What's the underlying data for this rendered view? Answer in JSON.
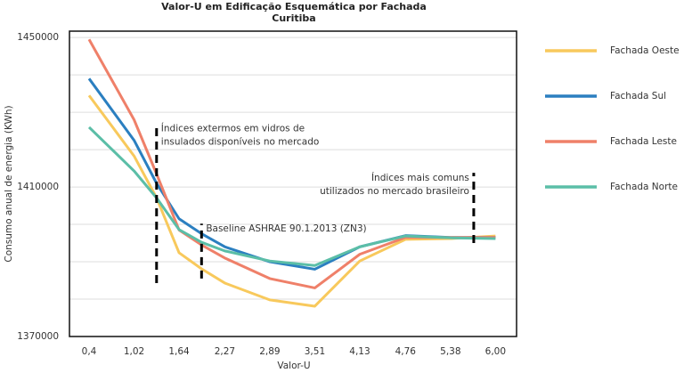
{
  "chart_data": {
    "type": "line",
    "title": [
      "Valor-U  em Edificação Esquemática por Fachada",
      "Curitiba"
    ],
    "x_label": "Valor-U",
    "y_label": "Consumo anual de energia (KWh)",
    "x": [
      0.4,
      1.02,
      1.33,
      1.64,
      1.95,
      2.27,
      2.89,
      3.51,
      4.13,
      4.76,
      5.38,
      6.0
    ],
    "xlim": [
      0.13,
      6.29
    ],
    "xticks": [
      {
        "value": 0.4,
        "label": "0,4"
      },
      {
        "value": 1.02,
        "label": "1,02"
      },
      {
        "value": 1.64,
        "label": "1,64"
      },
      {
        "value": 2.27,
        "label": "2,27"
      },
      {
        "value": 2.89,
        "label": "2,89"
      },
      {
        "value": 3.51,
        "label": "3,51"
      },
      {
        "value": 4.13,
        "label": "4,13"
      },
      {
        "value": 4.76,
        "label": "4,76"
      },
      {
        "value": 5.38,
        "label": "5,38"
      },
      {
        "value": 6.0,
        "label": "6,00"
      }
    ],
    "ylim": [
      1370000,
      1451700
    ],
    "yticks": [
      1370000,
      1410000,
      1450000
    ],
    "minor_yticks": [
      1380000,
      1390000,
      1400000,
      1420000,
      1430000,
      1440000
    ],
    "grid": true,
    "legend": "right",
    "series": [
      {
        "name": "Fachada Oeste",
        "color": "#f8c95c",
        "values": [
          1434500,
          1418300,
          1407100,
          1392400,
          1388100,
          1384300,
          1379800,
          1378100,
          1390200,
          1396000,
          1396200,
          1396900
        ]
      },
      {
        "name": "Fachada Sul",
        "color": "#2b7fc0",
        "values": [
          1439000,
          1422500,
          1411000,
          1401500,
          1397500,
          1394000,
          1390000,
          1388000,
          1394000,
          1397000,
          1396500,
          1396500
        ]
      },
      {
        "name": "Fachada Leste",
        "color": "#ef8069",
        "values": [
          1449500,
          1428000,
          1413500,
          1398500,
          1394500,
          1391000,
          1385500,
          1383000,
          1392000,
          1396500,
          1396500,
          1396500
        ]
      },
      {
        "name": "Fachada Norte",
        "color": "#5bbea7",
        "values": [
          1426000,
          1414300,
          1407100,
          1398600,
          1395200,
          1392900,
          1390200,
          1389000,
          1394000,
          1396900,
          1396400,
          1396200
        ]
      }
    ],
    "annotations": [
      {
        "lines": [
          "Índices extermos em vidros de",
          "insulados disponíveis no mercado"
        ],
        "x": 1.33,
        "y_range": [
          1384300,
          1427000
        ],
        "align": "start"
      },
      {
        "lines": [
          "Baseline ASHRAE 90.1.2013 (ZN3)"
        ],
        "x": 1.95,
        "y_range": [
          1385500,
          1400200
        ],
        "align": "start"
      },
      {
        "lines": [
          "Índices mais comuns",
          "utilizados no mercado brasileiro"
        ],
        "x": 5.7,
        "y_range": [
          1395000,
          1413800
        ],
        "align": "end"
      }
    ]
  }
}
